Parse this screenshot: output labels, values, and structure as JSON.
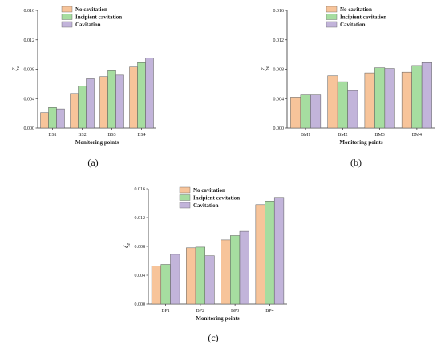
{
  "colors": {
    "no_cavitation": "#F7C49A",
    "incipient_cavitation": "#A6DDA0",
    "cavitation": "#C2B4DA",
    "bar_edge": "#5a5a5a",
    "axis": "#333333"
  },
  "chart_data": [
    {
      "type": "bar",
      "panel_label": "(a)",
      "ylabel": "ζ",
      "ylabel_sub": "e",
      "xlabel": "Monitoring points",
      "categories": [
        "BS1",
        "BS2",
        "BS3",
        "BS4"
      ],
      "ylim": [
        0,
        0.016
      ],
      "yticks": [
        "0.000",
        "0.004",
        "0.008",
        "0.012",
        "0.016"
      ],
      "legend_position": "top-left",
      "series": [
        {
          "name": "No cavitation",
          "values": [
            0.0021,
            0.0047,
            0.007,
            0.0083
          ]
        },
        {
          "name": "Incipient cavitation",
          "values": [
            0.0028,
            0.0057,
            0.0078,
            0.0089
          ]
        },
        {
          "name": "Cavitation",
          "values": [
            0.0026,
            0.0067,
            0.0072,
            0.0095
          ]
        }
      ]
    },
    {
      "type": "bar",
      "panel_label": "(b)",
      "ylabel": "ζ",
      "ylabel_sub": "e",
      "xlabel": "Monitoring points",
      "categories": [
        "BM1",
        "BM2",
        "BM3",
        "BM4"
      ],
      "ylim": [
        0,
        0.016
      ],
      "yticks": [
        "0.000",
        "0.004",
        "0.008",
        "0.012",
        "0.016"
      ],
      "legend_position": "top-left",
      "series": [
        {
          "name": "No cavitation",
          "values": [
            0.0042,
            0.0071,
            0.0075,
            0.0076
          ]
        },
        {
          "name": "Incipient cavitation",
          "values": [
            0.0045,
            0.0063,
            0.0082,
            0.0085
          ]
        },
        {
          "name": "Cavitation",
          "values": [
            0.0045,
            0.0051,
            0.0081,
            0.0089
          ]
        }
      ]
    },
    {
      "type": "bar",
      "panel_label": "(c)",
      "ylabel": "ζ",
      "ylabel_sub": "e",
      "xlabel": "Monitoring points",
      "categories": [
        "BP1",
        "BP2",
        "BP3",
        "BP4"
      ],
      "ylim": [
        0,
        0.016
      ],
      "yticks": [
        "0.000",
        "0.004",
        "0.008",
        "0.012",
        "0.016"
      ],
      "legend_position": "top-left",
      "series": [
        {
          "name": "No cavitation",
          "values": [
            0.0053,
            0.0078,
            0.0089,
            0.0138
          ]
        },
        {
          "name": "Incipient cavitation",
          "values": [
            0.0055,
            0.0079,
            0.0095,
            0.0143
          ]
        },
        {
          "name": "Cavitation",
          "values": [
            0.0069,
            0.0067,
            0.0101,
            0.0148
          ]
        }
      ]
    }
  ]
}
